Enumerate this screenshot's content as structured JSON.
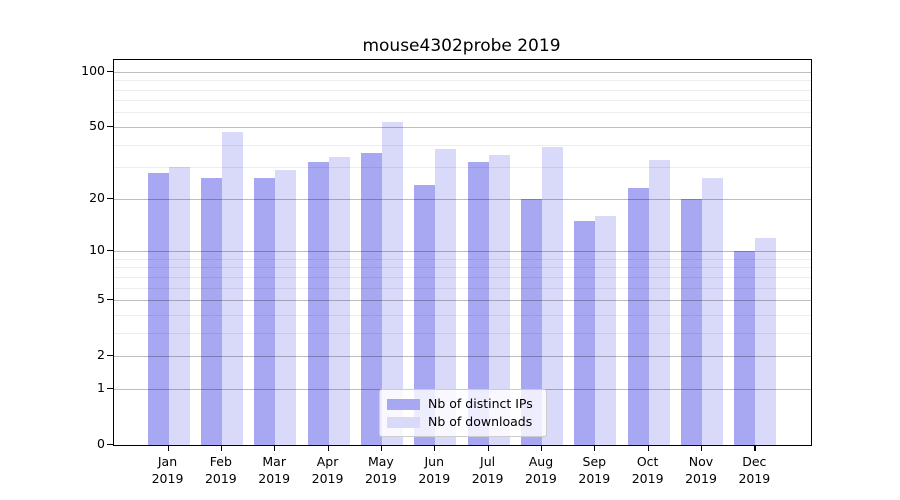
{
  "title": "mouse4302probe 2019",
  "chart_data": {
    "type": "bar",
    "title": "mouse4302probe 2019",
    "scale": "log1p",
    "grid": "on",
    "legend_position": "bottom-center-inside",
    "months": [
      "Jan",
      "Feb",
      "Mar",
      "Apr",
      "May",
      "Jun",
      "Jul",
      "Aug",
      "Sep",
      "Oct",
      "Nov",
      "Dec"
    ],
    "year": "2019",
    "series": [
      {
        "name": "Nb of distinct IPs",
        "color": "#a7a7f2",
        "values": [
          28,
          26,
          26,
          32,
          36,
          24,
          32,
          20,
          15,
          23,
          20,
          10
        ]
      },
      {
        "name": "Nb of downloads",
        "color": "#d9d9f9",
        "values": [
          30,
          47,
          29,
          34,
          53,
          38,
          35,
          39,
          16,
          33,
          26,
          12
        ]
      }
    ],
    "yticks": [
      100,
      50,
      20,
      10,
      5,
      2,
      1,
      0
    ],
    "minor_gridlines": [
      3,
      4,
      6,
      7,
      8,
      9,
      30,
      40,
      60,
      70,
      80,
      90
    ],
    "major_gridlines": [
      1,
      2,
      5,
      10,
      20,
      50,
      100
    ],
    "ylim": [
      0,
      115
    ],
    "axis_color": "#000000",
    "major_grid_color": "rgba(0,0,0,0.26)",
    "minor_grid_color": "rgba(0,0,0,0.07)"
  }
}
